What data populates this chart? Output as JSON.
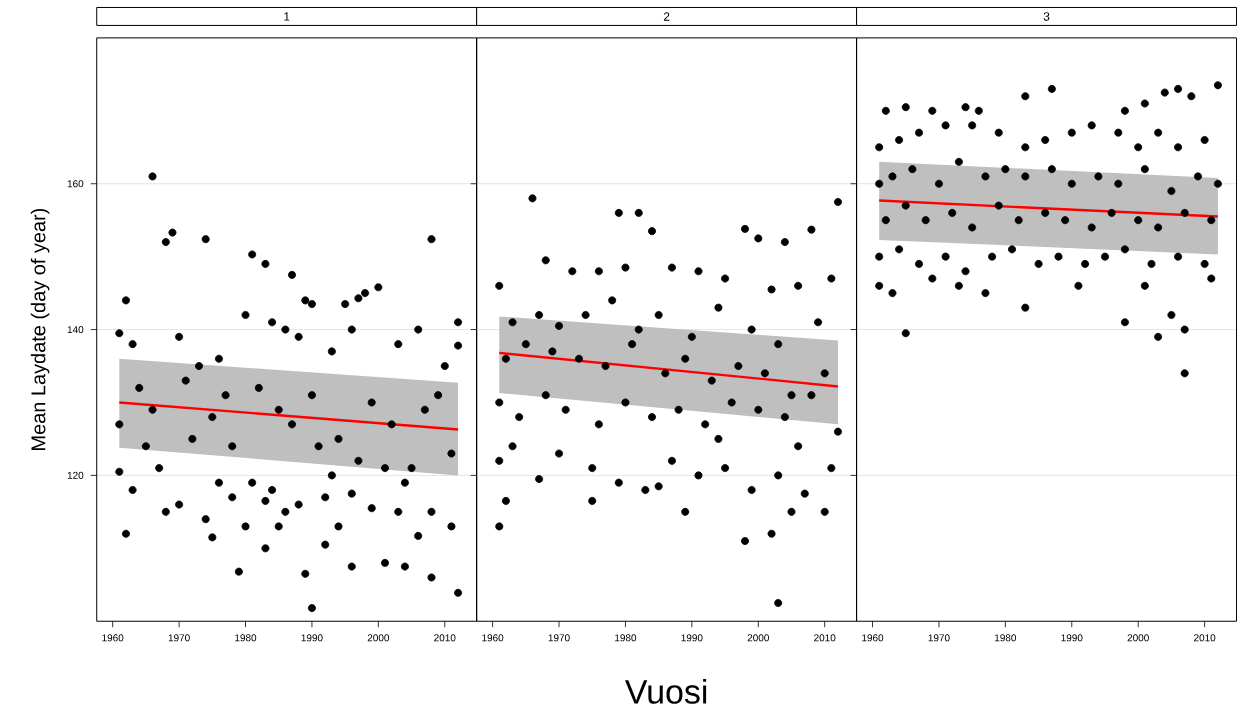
{
  "chart_data": [
    {
      "type": "scatter",
      "title": "1",
      "ylabel": "Mean Laydate (day of year)",
      "xlim": [
        1957.6,
        2014.8
      ],
      "ylim": [
        100,
        180
      ],
      "xticks": [
        1960,
        1970,
        1980,
        1990,
        2000,
        2010
      ],
      "yticks": [
        120,
        140,
        160
      ],
      "grid": "y",
      "marker": "circle",
      "series": [
        {
          "color": "#000000",
          "x": [
            1966,
            1969,
            1968,
            1974,
            1981,
            1983,
            1987,
            1989,
            1990,
            1995,
            1997,
            1998,
            2000,
            2008,
            1962,
            1990,
            2012,
            1979,
            1989,
            2008,
            2004,
            2001,
            1996,
            1962,
            1975,
            1983,
            1985,
            1992,
            1994,
            2006,
            2011,
            2003,
            2012,
            2012,
            2009,
            1961,
            1963,
            1970,
            1976,
            1980,
            1984,
            1986,
            1988,
            1993,
            1996,
            2003,
            2006,
            2010,
            1964,
            1971,
            1973,
            1977,
            1982,
            1985,
            1990,
            1994,
            1999,
            2002,
            2007,
            1961,
            1966,
            1972,
            1978,
            1987,
            1991,
            1997,
            2001,
            2005,
            2011,
            1961,
            1963,
            1967,
            1970,
            1974,
            1978,
            1981,
            1984,
            1988,
            1992,
            1996,
            1999,
            2004,
            2008,
            1976,
            1980,
            1983,
            1986,
            1968,
            1965,
            1975,
            1993
          ],
          "values": [
            161,
            153.3,
            152,
            152.4,
            150.3,
            149,
            147.5,
            144,
            143.5,
            143.5,
            144.3,
            145,
            145.8,
            152.4,
            144,
            101.8,
            103.9,
            106.8,
            106.5,
            106,
            107.5,
            108,
            107.5,
            112,
            111.5,
            110,
            113,
            110.5,
            113,
            111.7,
            113,
            115,
            141,
            137.8,
            131,
            139.5,
            138,
            139,
            136,
            142,
            141,
            140,
            139,
            137,
            140,
            138,
            140,
            135,
            132,
            133,
            135,
            131,
            132,
            129,
            131,
            125,
            130,
            127,
            129,
            127,
            129,
            125,
            124,
            127,
            124,
            122,
            121,
            121,
            123,
            120.5,
            118,
            121,
            116,
            114,
            117,
            119,
            118,
            116,
            117,
            117.5,
            115.5,
            119,
            115,
            119,
            113,
            116.5,
            115,
            115,
            124,
            128,
            120
          ]
        },
        {
          "type": "line",
          "marker": "none",
          "color": "#ff0000",
          "x": [
            1961,
            2012
          ],
          "values": [
            130,
            126.3
          ],
          "lower": [
            123.8,
            120
          ],
          "upper": [
            136,
            132.7
          ]
        }
      ]
    },
    {
      "type": "scatter",
      "title": "2",
      "xlabel": "Vuosi",
      "xlim": [
        1957.6,
        2014.8
      ],
      "ylim": [
        100,
        180
      ],
      "xticks": [
        1960,
        1970,
        1980,
        1990,
        2000,
        2010
      ],
      "yticks": [
        120,
        140,
        160
      ],
      "tick_labels": "x",
      "grid": "y",
      "marker": "circle",
      "series": [
        {
          "color": "#000000",
          "x": [
            1966,
            1979,
            1982,
            2012,
            1984,
            1998,
            2000,
            2004,
            2008,
            1961,
            1968,
            1972,
            1976,
            1980,
            1987,
            1991,
            1995,
            2002,
            2006,
            2011,
            1963,
            1967,
            1970,
            1974,
            1978,
            1982,
            1985,
            1990,
            1994,
            1999,
            2003,
            2009,
            1962,
            1965,
            1969,
            1973,
            1977,
            1981,
            1986,
            1989,
            1993,
            1997,
            2001,
            2005,
            2010,
            1961,
            1964,
            1968,
            1971,
            1976,
            1980,
            1984,
            1988,
            1992,
            1996,
            2000,
            2004,
            2008,
            2012,
            1961,
            1963,
            1967,
            1970,
            1975,
            1979,
            1983,
            1987,
            1991,
            1995,
            1999,
            2003,
            2007,
            2011,
            1962,
            1975,
            1989,
            1998,
            2002,
            2005,
            2010,
            1961,
            2003,
            1985,
            1994,
            2006
          ],
          "values": [
            158,
            156,
            156,
            157.5,
            153.5,
            153.8,
            152.5,
            152,
            153.7,
            146,
            149.5,
            148,
            148,
            148.5,
            148.5,
            148,
            147,
            145.5,
            146,
            147,
            141,
            142,
            140.5,
            142,
            144,
            140,
            142,
            139,
            143,
            140,
            138,
            141,
            136,
            138,
            137,
            136,
            135,
            138,
            134,
            136,
            133,
            135,
            134,
            131,
            134,
            130,
            128,
            131,
            129,
            127,
            130,
            128,
            129,
            127,
            130,
            129,
            128,
            131,
            126,
            122,
            124,
            119.5,
            123,
            121,
            119,
            118,
            122,
            120,
            121,
            118,
            120,
            117.5,
            121,
            116.5,
            116.5,
            115,
            111,
            112,
            115,
            115,
            113,
            102.5,
            118.5,
            125,
            124
          ]
        },
        {
          "type": "line",
          "marker": "none",
          "color": "#ff0000",
          "x": [
            1961,
            2012
          ],
          "values": [
            136.8,
            132.2
          ],
          "lower": [
            131.3,
            127
          ],
          "upper": [
            141.8,
            138.5
          ]
        }
      ]
    },
    {
      "type": "scatter",
      "title": "3",
      "xlim": [
        1957.6,
        2014.8
      ],
      "ylim": [
        100,
        180
      ],
      "xticks": [
        1960,
        1970,
        1980,
        1990,
        2000,
        2010
      ],
      "yticks": [
        120,
        140,
        160
      ],
      "tick_labels": "x",
      "grid": "y",
      "marker": "circle",
      "series": [
        {
          "color": "#000000",
          "x": [
            1987,
            1983,
            2004,
            2006,
            2008,
            2012,
            1962,
            1965,
            1969,
            1974,
            1976,
            1998,
            2001,
            1961,
            1964,
            1967,
            1971,
            1975,
            1979,
            1983,
            1986,
            1990,
            1993,
            1997,
            2000,
            2003,
            2006,
            2010,
            1961,
            1963,
            1966,
            1970,
            1973,
            1977,
            1980,
            1983,
            1987,
            1990,
            1994,
            1997,
            2001,
            2005,
            2009,
            2012,
            1962,
            1965,
            1968,
            1972,
            1975,
            1979,
            1982,
            1986,
            1989,
            1993,
            1996,
            2000,
            2003,
            2007,
            2011,
            1961,
            1964,
            1967,
            1971,
            1974,
            1978,
            1981,
            1985,
            1988,
            1992,
            1995,
            1998,
            2002,
            2006,
            2010,
            1961,
            1963,
            1969,
            1973,
            1977,
            1983,
            1991,
            1998,
            2001,
            2003,
            2007,
            2007,
            1965,
            2011,
            2005
          ],
          "values": [
            173,
            172,
            172.5,
            173,
            172,
            173.5,
            170,
            170.5,
            170,
            170.5,
            170,
            170,
            171,
            165,
            166,
            167,
            168,
            168,
            167,
            165,
            166,
            167,
            168,
            167,
            165,
            167,
            165,
            166,
            160,
            161,
            162,
            160,
            163,
            161,
            162,
            161,
            162,
            160,
            161,
            160,
            162,
            159,
            161,
            160,
            155,
            157,
            155,
            156,
            154,
            157,
            155,
            156,
            155,
            154,
            156,
            155,
            154,
            156,
            155,
            150,
            151,
            149,
            150,
            148,
            150,
            151,
            149,
            150,
            149,
            150,
            151,
            149,
            150,
            149,
            146,
            145,
            147,
            146,
            145,
            143,
            146,
            141,
            146,
            139,
            140,
            134,
            139.5,
            147,
            142
          ]
        },
        {
          "type": "line",
          "marker": "none",
          "color": "#ff0000",
          "x": [
            1961,
            2012
          ],
          "values": [
            157.7,
            155.5
          ],
          "lower": [
            152.3,
            150.3
          ],
          "upper": [
            163,
            160.8
          ]
        }
      ]
    }
  ]
}
